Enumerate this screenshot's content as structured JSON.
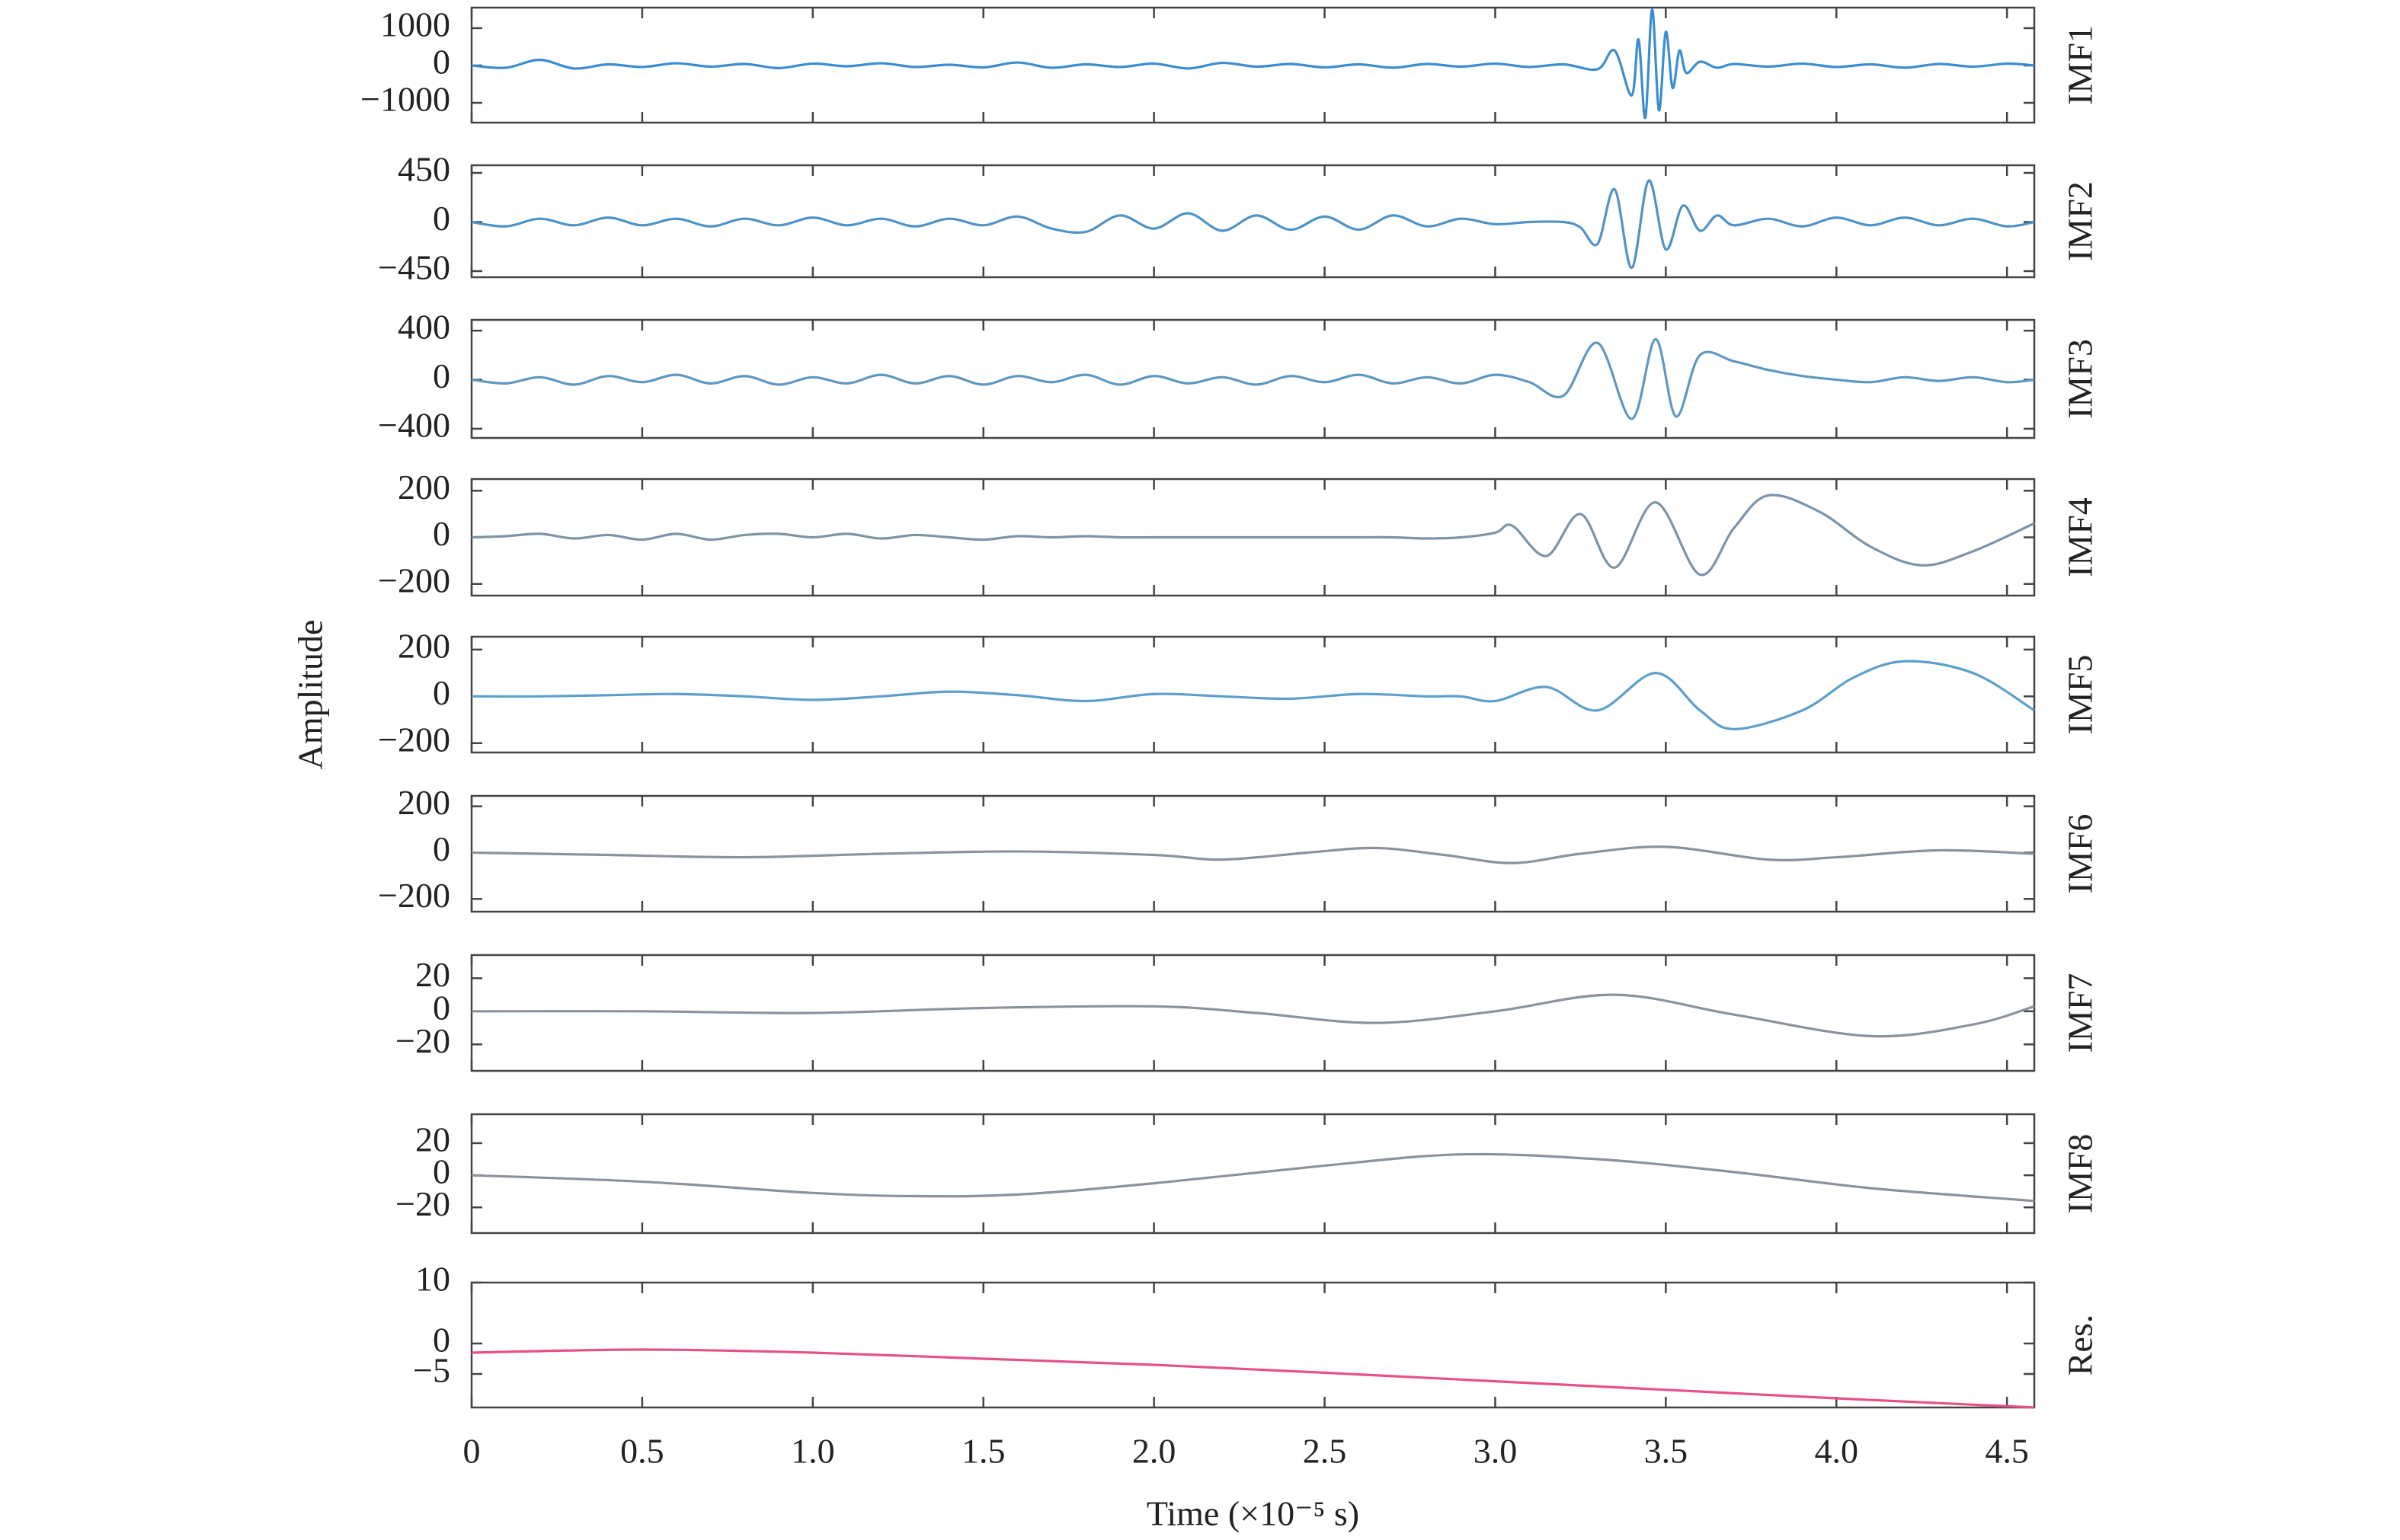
{
  "chart_data": [
    {
      "type": "line",
      "title": "IMF1",
      "color": "#3b8dd0",
      "xlim": [
        0,
        4.58
      ],
      "ylim": [
        -1530,
        1550
      ],
      "yticks": [
        1000,
        0,
        {
          "value": -1000,
          "label": "−1000"
        }
      ],
      "x": [
        0,
        0.1,
        0.2,
        0.3,
        0.4,
        0.5,
        0.6,
        0.7,
        0.8,
        0.9,
        1.0,
        1.1,
        1.2,
        1.3,
        1.4,
        1.5,
        1.6,
        1.7,
        1.8,
        1.9,
        2.0,
        2.1,
        2.2,
        2.3,
        2.4,
        2.5,
        2.6,
        2.7,
        2.8,
        2.9,
        3.0,
        3.1,
        3.2,
        3.3,
        3.35,
        3.4,
        3.42,
        3.44,
        3.46,
        3.48,
        3.5,
        3.52,
        3.54,
        3.56,
        3.6,
        3.65,
        3.7,
        3.8,
        3.9,
        4.0,
        4.1,
        4.2,
        4.3,
        4.4,
        4.5,
        4.58
      ],
      "values": [
        0,
        -60,
        150,
        -80,
        30,
        -40,
        60,
        -30,
        40,
        -70,
        50,
        -20,
        60,
        -40,
        20,
        -50,
        80,
        -60,
        30,
        -40,
        50,
        -80,
        70,
        -30,
        40,
        -50,
        30,
        -60,
        40,
        -30,
        50,
        -40,
        30,
        -100,
        400,
        -800,
        700,
        -1400,
        1500,
        -1200,
        900,
        -600,
        400,
        -200,
        100,
        -60,
        40,
        -30,
        50,
        -40,
        30,
        -60,
        40,
        -30,
        50,
        0
      ]
    },
    {
      "type": "line",
      "title": "IMF2",
      "color": "#4f93c6",
      "xlim": [
        0,
        4.58
      ],
      "ylim": [
        -506,
        520
      ],
      "yticks": [
        450,
        0,
        {
          "value": -450,
          "label": "−450"
        }
      ],
      "x": [
        0,
        0.1,
        0.2,
        0.3,
        0.4,
        0.5,
        0.6,
        0.7,
        0.8,
        0.9,
        1.0,
        1.1,
        1.2,
        1.3,
        1.4,
        1.5,
        1.6,
        1.7,
        1.8,
        1.9,
        2.0,
        2.1,
        2.2,
        2.3,
        2.4,
        2.5,
        2.6,
        2.7,
        2.8,
        2.9,
        3.0,
        3.1,
        3.2,
        3.25,
        3.3,
        3.35,
        3.4,
        3.45,
        3.5,
        3.55,
        3.6,
        3.65,
        3.7,
        3.8,
        3.9,
        4.0,
        4.1,
        4.2,
        4.3,
        4.4,
        4.5,
        4.58
      ],
      "values": [
        0,
        -40,
        30,
        -30,
        40,
        -30,
        30,
        -40,
        30,
        -30,
        40,
        -30,
        30,
        -40,
        30,
        -30,
        50,
        -60,
        -90,
        60,
        -60,
        80,
        -80,
        60,
        -70,
        50,
        -70,
        60,
        -40,
        30,
        -20,
        0,
        0,
        -50,
        -200,
        300,
        -420,
        380,
        -250,
        150,
        -80,
        60,
        -30,
        30,
        -40,
        40,
        -30,
        40,
        -30,
        30,
        -40,
        0
      ]
    },
    {
      "type": "line",
      "title": "IMF3",
      "color": "#5e97c0",
      "xlim": [
        0,
        4.58
      ],
      "ylim": [
        -475,
        488
      ],
      "yticks": [
        400,
        0,
        {
          "value": -400,
          "label": "−400"
        }
      ],
      "x": [
        0,
        0.1,
        0.2,
        0.3,
        0.4,
        0.5,
        0.6,
        0.7,
        0.8,
        0.9,
        1.0,
        1.1,
        1.2,
        1.3,
        1.4,
        1.5,
        1.6,
        1.7,
        1.8,
        1.9,
        2.0,
        2.1,
        2.2,
        2.3,
        2.4,
        2.5,
        2.6,
        2.7,
        2.8,
        2.9,
        3.0,
        3.1,
        3.2,
        3.3,
        3.4,
        3.47,
        3.53,
        3.6,
        3.7,
        3.8,
        3.9,
        4.0,
        4.1,
        4.2,
        4.3,
        4.4,
        4.5,
        4.58
      ],
      "values": [
        0,
        -30,
        20,
        -40,
        30,
        -20,
        40,
        -30,
        30,
        -40,
        20,
        -30,
        40,
        -30,
        30,
        -40,
        30,
        -20,
        40,
        -40,
        30,
        -30,
        20,
        -40,
        30,
        -20,
        40,
        -30,
        20,
        -30,
        40,
        -20,
        -130,
        300,
        -320,
        330,
        -300,
        200,
        150,
        80,
        30,
        0,
        -20,
        20,
        -10,
        20,
        -20,
        0
      ]
    },
    {
      "type": "line",
      "title": "IMF4",
      "color": "#7d93a8",
      "xlim": [
        0,
        4.58
      ],
      "ylim": [
        -250,
        250
      ],
      "yticks": [
        200,
        0,
        {
          "value": -200,
          "label": "−200"
        }
      ],
      "x": [
        0,
        0.1,
        0.2,
        0.3,
        0.4,
        0.5,
        0.6,
        0.7,
        0.8,
        0.9,
        1.0,
        1.1,
        1.2,
        1.3,
        1.4,
        1.5,
        1.6,
        1.7,
        1.8,
        1.9,
        2.0,
        2.1,
        2.2,
        2.3,
        2.4,
        2.5,
        2.6,
        2.7,
        2.8,
        2.9,
        3.0,
        3.05,
        3.15,
        3.25,
        3.35,
        3.47,
        3.6,
        3.7,
        3.8,
        3.95,
        4.1,
        4.25,
        4.4,
        4.58
      ],
      "values": [
        0,
        5,
        15,
        -5,
        10,
        -10,
        15,
        -10,
        10,
        15,
        0,
        15,
        -5,
        10,
        0,
        -10,
        5,
        0,
        5,
        0,
        0,
        0,
        0,
        0,
        0,
        0,
        0,
        0,
        -5,
        0,
        20,
        50,
        -80,
        100,
        -130,
        150,
        -160,
        40,
        180,
        110,
        -40,
        -120,
        -60,
        60
      ]
    },
    {
      "type": "line",
      "title": "IMF5",
      "ylabel": "Amplitude",
      "color": "#5c9fcb",
      "xlim": [
        0,
        4.58
      ],
      "ylim": [
        -240,
        255
      ],
      "yticks": [
        200,
        0,
        {
          "value": -200,
          "label": "−200"
        }
      ],
      "x": [
        0,
        0.2,
        0.4,
        0.6,
        0.8,
        1.0,
        1.2,
        1.4,
        1.6,
        1.8,
        2.0,
        2.2,
        2.4,
        2.6,
        2.8,
        2.9,
        3.0,
        3.15,
        3.3,
        3.47,
        3.6,
        3.7,
        3.9,
        4.05,
        4.2,
        4.4,
        4.58
      ],
      "values": [
        0,
        0,
        5,
        10,
        0,
        -15,
        0,
        20,
        5,
        -20,
        10,
        0,
        -10,
        10,
        0,
        0,
        -20,
        40,
        -60,
        100,
        -60,
        -140,
        -60,
        80,
        150,
        100,
        -60
      ]
    },
    {
      "type": "line",
      "title": "IMF6",
      "color": "#8a939c",
      "xlim": [
        0,
        4.58
      ],
      "ylim": [
        -255,
        245
      ],
      "yticks": [
        200,
        0,
        {
          "value": -200,
          "label": "−200"
        }
      ],
      "x": [
        0,
        0.4,
        0.8,
        1.2,
        1.6,
        2.0,
        2.2,
        2.45,
        2.65,
        2.85,
        3.05,
        3.25,
        3.5,
        3.8,
        4.0,
        4.3,
        4.58
      ],
      "values": [
        0,
        -10,
        -20,
        -5,
        5,
        -10,
        -30,
        0,
        20,
        -10,
        -45,
        -5,
        25,
        -30,
        -20,
        10,
        -5
      ]
    },
    {
      "type": "line",
      "title": "IMF7",
      "color": "#8a939c",
      "xlim": [
        0,
        4.58
      ],
      "ylim": [
        -36,
        34
      ],
      "yticks": [
        20,
        0,
        {
          "value": -20,
          "label": "−20"
        }
      ],
      "x": [
        0,
        0.5,
        1.0,
        1.5,
        2.0,
        2.3,
        2.65,
        3.0,
        3.35,
        3.7,
        4.1,
        4.4,
        4.58
      ],
      "values": [
        0,
        0,
        -1,
        2,
        3,
        -1,
        -7,
        0,
        10,
        -2,
        -15,
        -8,
        3
      ]
    },
    {
      "type": "line",
      "title": "IMF8",
      "color": "#8a939c",
      "xlim": [
        0,
        4.58
      ],
      "ylim": [
        -36,
        38
      ],
      "yticks": [
        20,
        0,
        {
          "value": -20,
          "label": "−20"
        }
      ],
      "x": [
        0,
        0.5,
        1.0,
        1.3,
        1.6,
        2.0,
        2.5,
        2.9,
        3.3,
        3.7,
        4.1,
        4.58
      ],
      "values": [
        0,
        -4,
        -11,
        -13,
        -12,
        -5,
        6,
        13,
        10,
        2,
        -8,
        -16
      ]
    },
    {
      "type": "line",
      "title": "Res.",
      "xlabel": "Time (×10⁻⁵ s)",
      "color": "#e8508a",
      "xlim": [
        0,
        4.58
      ],
      "ylim": [
        -10.5,
        10
      ],
      "yticks": [
        10,
        0,
        {
          "value": -5,
          "label": "−5"
        }
      ],
      "xticks": [
        0,
        0.5,
        {
          "value": 1,
          "label": "1.0"
        },
        1.5,
        {
          "value": 2,
          "label": "2.0"
        },
        2.5,
        {
          "value": 3,
          "label": "3.0"
        },
        3.5,
        {
          "value": 4,
          "label": "4.0"
        },
        4.5
      ],
      "x": [
        0,
        0.5,
        1.0,
        1.5,
        2.0,
        2.5,
        3.0,
        3.5,
        4.0,
        4.58
      ],
      "values": [
        -1.5,
        -1,
        -1.5,
        -2.5,
        -3.5,
        -4.8,
        -6.2,
        -7.6,
        -9,
        -10.5
      ]
    }
  ]
}
